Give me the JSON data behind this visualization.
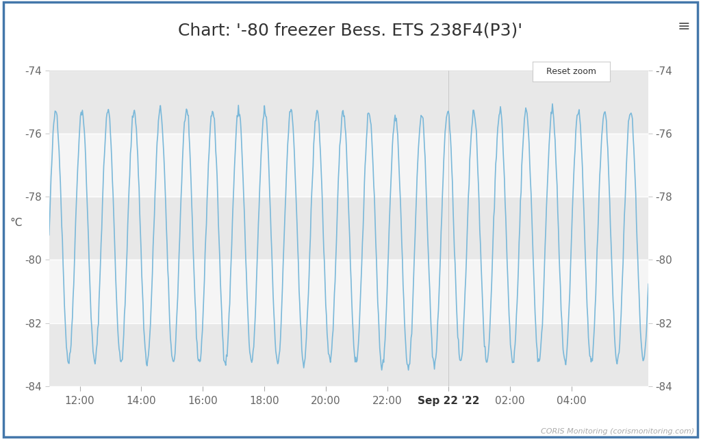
{
  "title": "Chart: '-80 freezer Bess. ETS 238F4(P3)'",
  "ylabel": "°C",
  "x_tick_labels": [
    "12:00",
    "14:00",
    "16:00",
    "18:00",
    "20:00",
    "22:00",
    "Sep 22 '22",
    "02:00",
    "04:00"
  ],
  "ylim": [
    -84,
    -74
  ],
  "yticks": [
    -84,
    -82,
    -80,
    -78,
    -76,
    -74
  ],
  "line_color": "#7ab8d9",
  "bg_outer": "#ffffff",
  "bg_plot": "#f5f5f5",
  "band1_color": "#e8e8e8",
  "band2_color": "#f5f5f5",
  "border_color": "#4477aa",
  "title_fontsize": 18,
  "axis_label_fontsize": 11,
  "tick_fontsize": 11,
  "footer_text": "CORIS Monitoring (corismonitoring.com)",
  "reset_zoom_text": "Reset zoom",
  "n_cycles": 22,
  "start_hour": 11.0,
  "end_hour": 30.5,
  "min_temp": -83.3,
  "max_temp": -75.2,
  "cycle_period_hours": 0.85
}
